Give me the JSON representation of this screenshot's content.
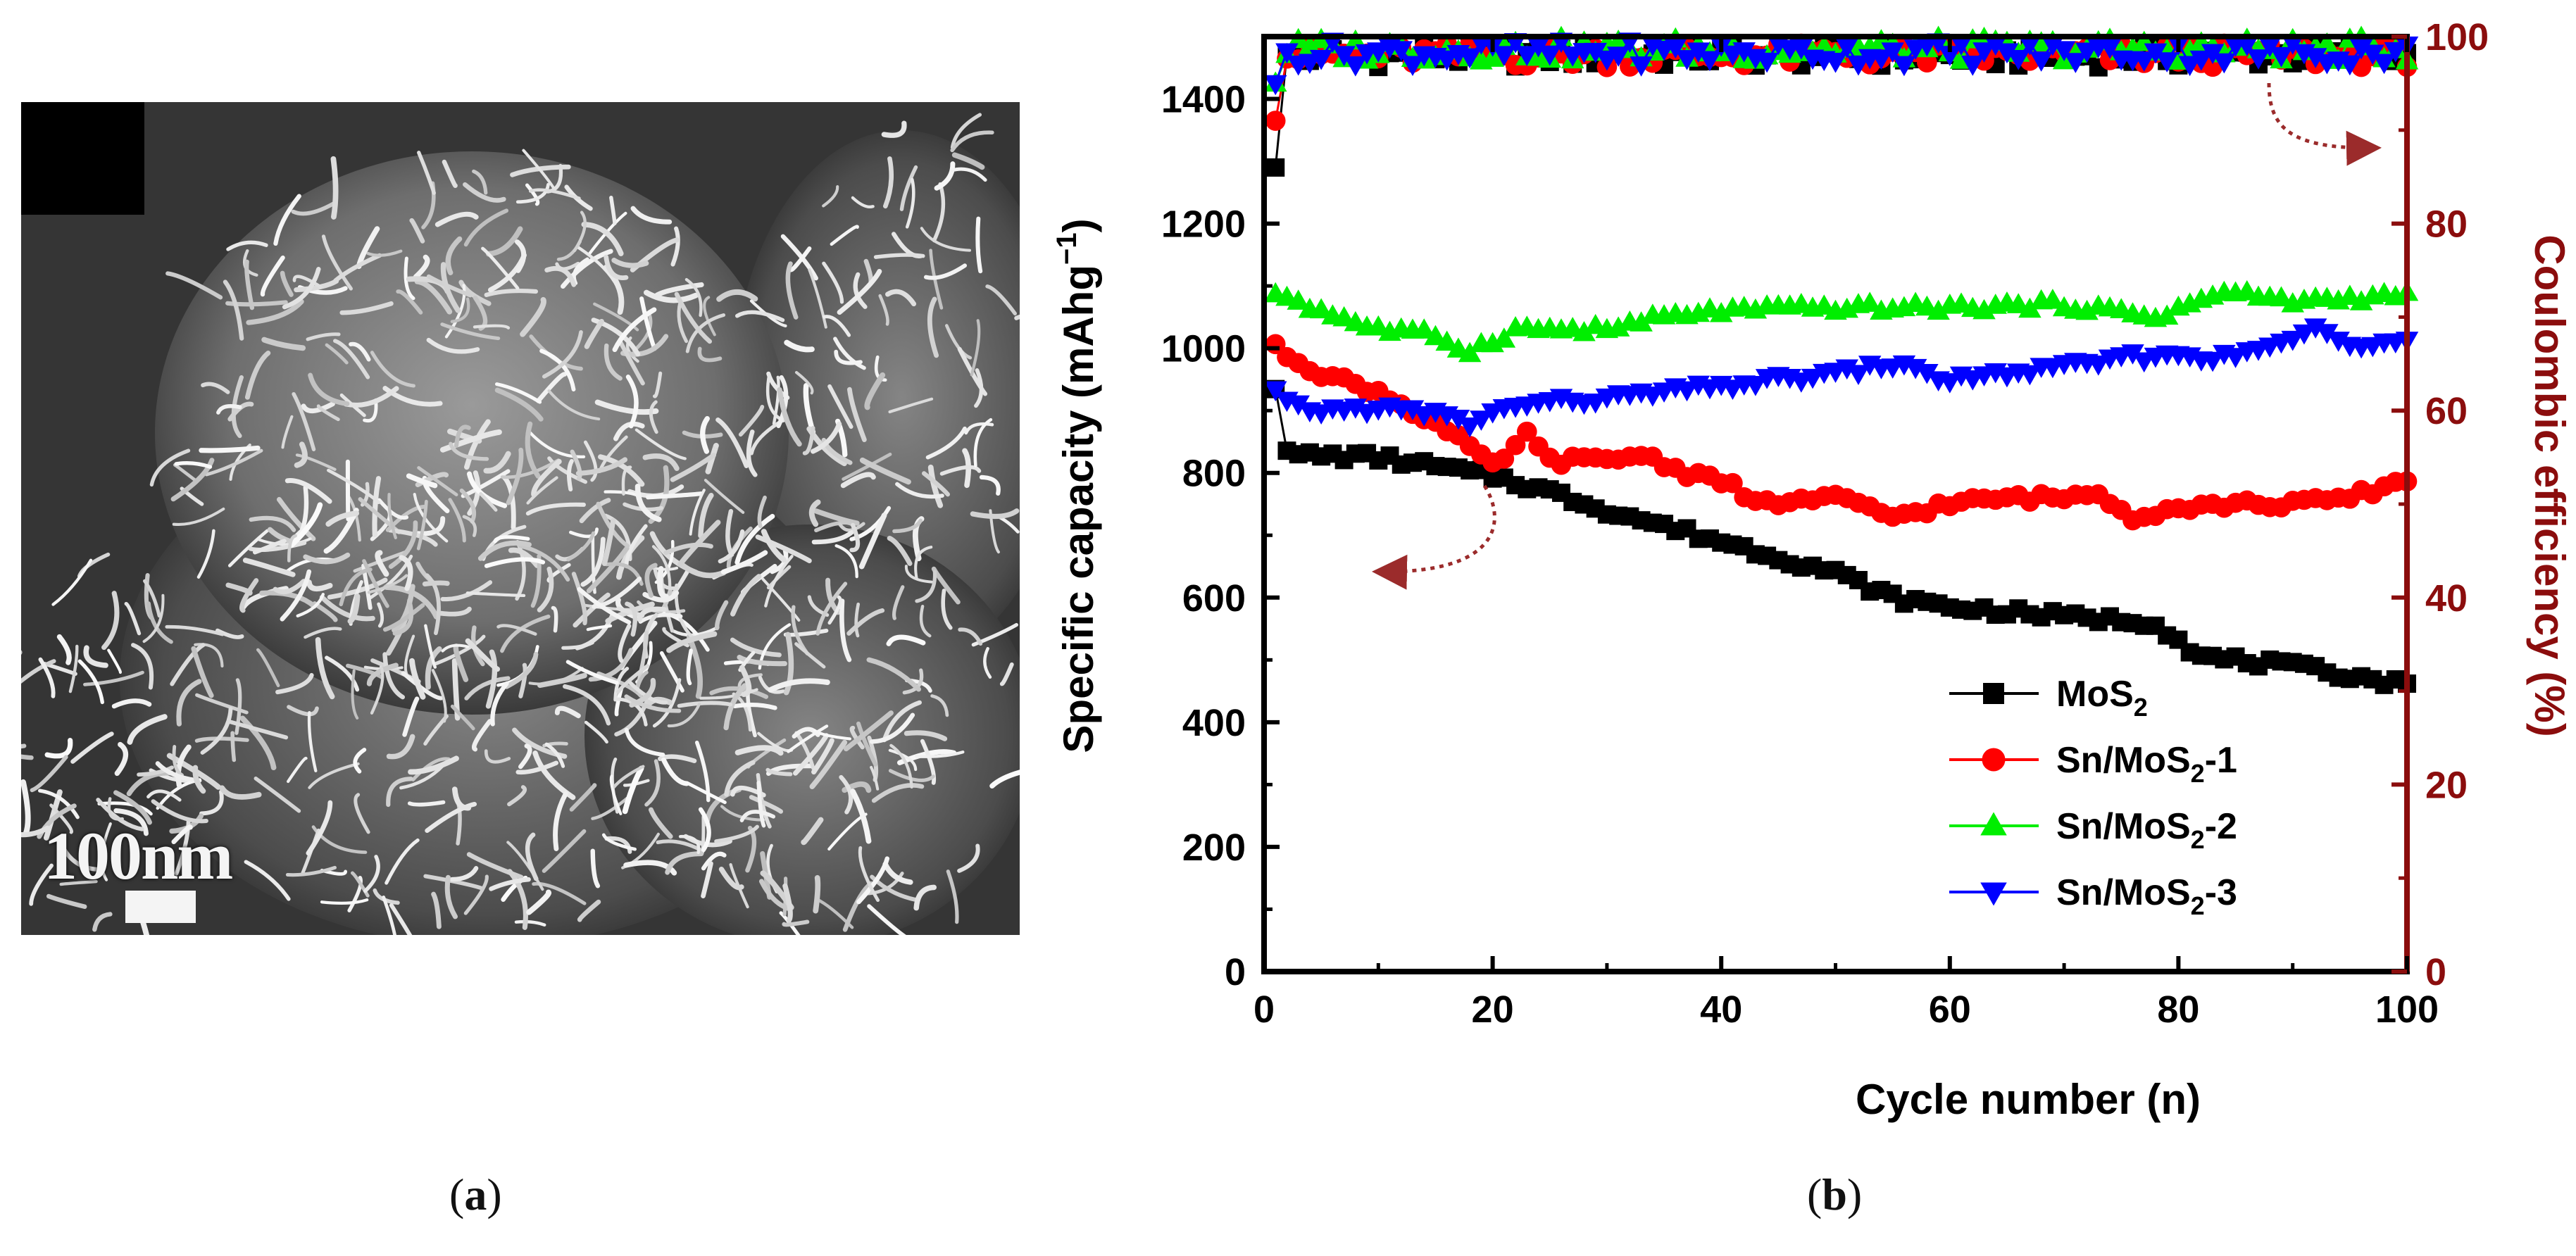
{
  "panel_a": {
    "scale_label": "100nm",
    "caption_open": "(",
    "caption_letter": "a",
    "caption_close": ")"
  },
  "panel_b": {
    "caption_open": "(",
    "caption_letter": "b",
    "caption_close": ")"
  },
  "colors": {
    "left_axis": "#000000",
    "right_axis": "#8b0d0d",
    "arrow": "#9b2b2b"
  },
  "chart_data": {
    "type": "scatter",
    "title": "",
    "xlabel": "Cycle number (n)",
    "ylabel": "Specific capacity (mAhg",
    "ylabel_sup": "−1",
    "ylabel_close": ")",
    "y2label": "Coulombic efficiency (%)",
    "xlim": [
      0,
      100
    ],
    "ylim": [
      0,
      1500
    ],
    "y2lim": [
      0,
      100
    ],
    "x_ticks": [
      "0",
      "20",
      "40",
      "60",
      "80",
      "100"
    ],
    "y_ticks": [
      "0",
      "200",
      "400",
      "600",
      "800",
      "1000",
      "1200",
      "1400"
    ],
    "y2_ticks": [
      "0",
      "20",
      "40",
      "60",
      "80",
      "100"
    ],
    "legend": [
      {
        "name": "MoS",
        "sub": "2",
        "suffix": "",
        "color": "#000000",
        "marker": "square"
      },
      {
        "name": "Sn/MoS",
        "sub": "2",
        "suffix": "-1",
        "color": "#ff0000",
        "marker": "circle"
      },
      {
        "name": "Sn/MoS",
        "sub": "2",
        "suffix": "-2",
        "color": "#00ee00",
        "marker": "triangle-up"
      },
      {
        "name": "Sn/MoS",
        "sub": "2",
        "suffix": "-3",
        "color": "#0000ff",
        "marker": "triangle-down"
      }
    ],
    "capacity_series": [
      {
        "name": "MoS2",
        "color": "#000000",
        "marker": "square",
        "anchors": [
          [
            1,
            940
          ],
          [
            2,
            830
          ],
          [
            10,
            825
          ],
          [
            20,
            795
          ],
          [
            25,
            770
          ],
          [
            30,
            740
          ],
          [
            40,
            690
          ],
          [
            50,
            640
          ],
          [
            55,
            600
          ],
          [
            60,
            585
          ],
          [
            70,
            570
          ],
          [
            78,
            560
          ],
          [
            82,
            505
          ],
          [
            90,
            490
          ],
          [
            100,
            460
          ]
        ]
      },
      {
        "name": "Sn/MoS2-1",
        "color": "#ff0000",
        "marker": "circle",
        "anchors": [
          [
            1,
            1000
          ],
          [
            5,
            960
          ],
          [
            10,
            930
          ],
          [
            15,
            880
          ],
          [
            18,
            840
          ],
          [
            20,
            810
          ],
          [
            23,
            860
          ],
          [
            25,
            820
          ],
          [
            30,
            820
          ],
          [
            33,
            830
          ],
          [
            37,
            800
          ],
          [
            40,
            790
          ],
          [
            43,
            750
          ],
          [
            50,
            760
          ],
          [
            55,
            730
          ],
          [
            60,
            750
          ],
          [
            65,
            760
          ],
          [
            70,
            760
          ],
          [
            73,
            770
          ],
          [
            76,
            730
          ],
          [
            80,
            745
          ],
          [
            85,
            750
          ],
          [
            90,
            750
          ],
          [
            95,
            760
          ],
          [
            100,
            790
          ]
        ]
      },
      {
        "name": "Sn/MoS2-2",
        "color": "#00ee00",
        "marker": "triangle-up",
        "anchors": [
          [
            1,
            1090
          ],
          [
            5,
            1060
          ],
          [
            10,
            1030
          ],
          [
            15,
            1020
          ],
          [
            18,
            995
          ],
          [
            22,
            1030
          ],
          [
            30,
            1030
          ],
          [
            35,
            1050
          ],
          [
            40,
            1060
          ],
          [
            50,
            1065
          ],
          [
            60,
            1065
          ],
          [
            70,
            1070
          ],
          [
            78,
            1050
          ],
          [
            84,
            1090
          ],
          [
            90,
            1075
          ],
          [
            100,
            1085
          ]
        ]
      },
      {
        "name": "Sn/MoS2-3",
        "color": "#0000ff",
        "marker": "triangle-down",
        "anchors": [
          [
            1,
            930
          ],
          [
            2,
            910
          ],
          [
            5,
            900
          ],
          [
            10,
            905
          ],
          [
            15,
            895
          ],
          [
            18,
            880
          ],
          [
            22,
            910
          ],
          [
            30,
            920
          ],
          [
            40,
            940
          ],
          [
            50,
            960
          ],
          [
            55,
            975
          ],
          [
            60,
            950
          ],
          [
            70,
            970
          ],
          [
            75,
            985
          ],
          [
            80,
            990
          ],
          [
            85,
            985
          ],
          [
            92,
            1030
          ],
          [
            95,
            1005
          ],
          [
            100,
            1020
          ]
        ]
      }
    ],
    "efficiency_series": [
      {
        "name": "MoS2",
        "color": "#000000",
        "marker": "square",
        "first": 86,
        "level": 98.0
      },
      {
        "name": "Sn/MoS2-1",
        "color": "#ff0000",
        "marker": "circle",
        "first": 91,
        "level": 98.0
      },
      {
        "name": "Sn/MoS2-2",
        "color": "#00ee00",
        "marker": "triangle-up",
        "first": 95,
        "level": 98.6
      },
      {
        "name": "Sn/MoS2-3",
        "color": "#0000ff",
        "marker": "triangle-down",
        "first": 95,
        "level": 98.3
      }
    ]
  }
}
